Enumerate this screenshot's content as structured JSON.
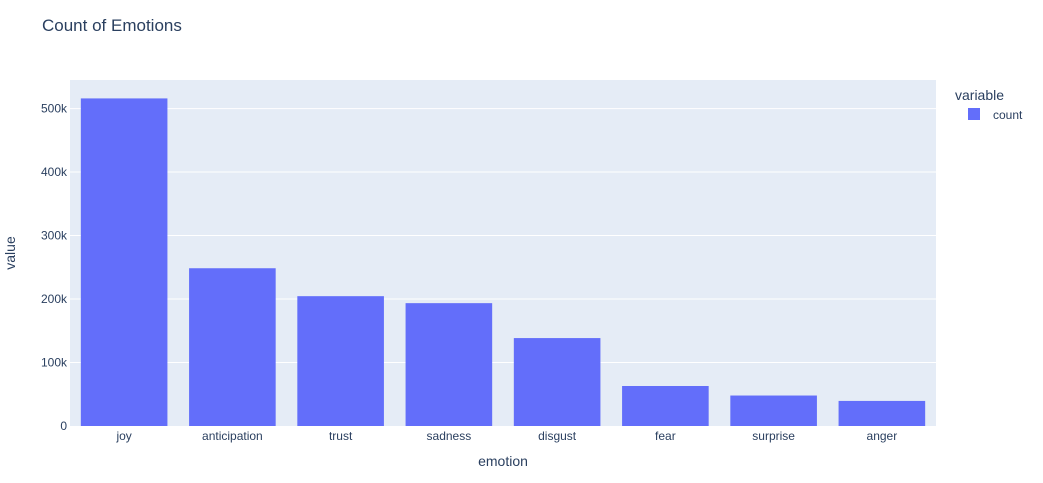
{
  "chart_data": {
    "type": "bar",
    "title": "Count of Emotions",
    "xlabel": "emotion",
    "ylabel": "value",
    "categories": [
      "joy",
      "anticipation",
      "trust",
      "sadness",
      "disgust",
      "fear",
      "surprise",
      "anger"
    ],
    "series": [
      {
        "name": "count",
        "values": [
          516000,
          248500,
          204500,
          193500,
          138500,
          63000,
          48000,
          39500
        ]
      }
    ],
    "ylim": [
      0,
      545000
    ],
    "yticks": [
      0,
      100000,
      200000,
      300000,
      400000,
      500000
    ],
    "ytick_labels": [
      "0",
      "100k",
      "200k",
      "300k",
      "400k",
      "500k"
    ],
    "grid": true,
    "legend": {
      "title": "variable",
      "placement": "top-right",
      "entries": [
        "count"
      ]
    },
    "colors": {
      "bar": "#636efa",
      "plot_background": "#e5ecf6",
      "grid": "#ffffff",
      "text": "#2a3f5f"
    }
  }
}
